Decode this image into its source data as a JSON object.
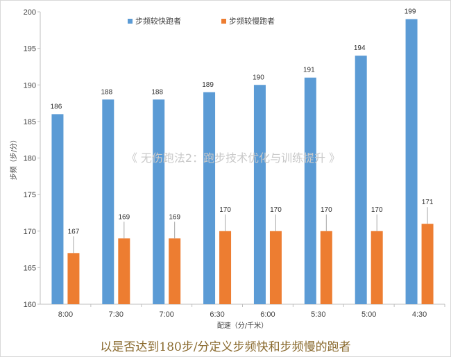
{
  "chart_data": {
    "type": "bar",
    "categories": [
      "8:00",
      "7:30",
      "7:00",
      "6:30",
      "6:00",
      "5:30",
      "5:00",
      "4:30"
    ],
    "series": [
      {
        "name": "步频较快跑者",
        "color": "#5b9bd5",
        "values": [
          186,
          188,
          188,
          189,
          190,
          191,
          194,
          199
        ],
        "labels": [
          "186",
          "188",
          "188",
          "189",
          "190",
          "191",
          "194",
          "199"
        ]
      },
      {
        "name": "步频较慢跑者",
        "color": "#ed7d31",
        "values": [
          167,
          169,
          169,
          170,
          170,
          170,
          170,
          171
        ],
        "labels": [
          "167",
          "169",
          "169",
          "170",
          "170",
          "170",
          "170",
          "171"
        ]
      }
    ],
    "yticks": [
      "160",
      "165",
      "170",
      "175",
      "180",
      "185",
      "190",
      "195",
      "200"
    ],
    "ylim": [
      160,
      200
    ],
    "xlabel": "配速（分/千米）",
    "ylabel": "步频（步/分）",
    "legend_position": "top",
    "grid": false
  },
  "watermark": "《 无伤跑法2：跑步技术优化与训练提升 》",
  "caption": "以是否达到180步/分定义步频快和步频慢的跑者"
}
